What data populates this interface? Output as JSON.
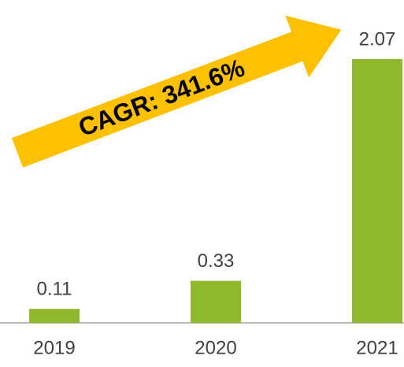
{
  "chart_data": {
    "type": "bar",
    "categories": [
      "2019",
      "2020",
      "2021"
    ],
    "values": [
      0.11,
      0.33,
      2.07
    ],
    "color": "#8fb82c",
    "annotation": "CAGR: 341.6%",
    "annotation_color": "#ffc000"
  }
}
